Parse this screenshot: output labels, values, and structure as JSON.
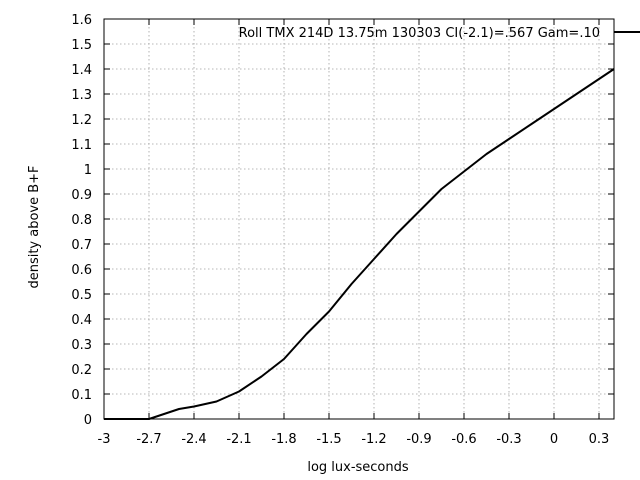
{
  "chart_data": {
    "type": "line",
    "title": "",
    "xlabel": "log lux-seconds",
    "ylabel": "density above B+F",
    "xlim": [
      -3.0,
      0.4
    ],
    "ylim": [
      0,
      1.6
    ],
    "grid": true,
    "legend_position": "top-right",
    "x_ticks": [
      -3,
      -2.7,
      -2.4,
      -2.1,
      -1.8,
      -1.5,
      -1.2,
      -0.9,
      -0.6,
      -0.3,
      0,
      0.3
    ],
    "x_tick_labels": [
      "-3",
      "-2.7",
      "-2.4",
      "-2.1",
      "-1.8",
      "-1.5",
      "-1.2",
      "-0.9",
      "-0.6",
      "-0.3",
      "0",
      "0.3"
    ],
    "y_ticks": [
      0,
      0.1,
      0.2,
      0.3,
      0.4,
      0.5,
      0.6,
      0.7,
      0.8,
      0.9,
      1,
      1.1,
      1.2,
      1.3,
      1.4,
      1.5,
      1.6
    ],
    "y_tick_labels": [
      "0",
      "0.1",
      "0.2",
      "0.3",
      "0.4",
      "0.5",
      "0.6",
      "0.7",
      "0.8",
      "0.9",
      "1",
      "1.1",
      "1.2",
      "1.3",
      "1.4",
      "1.5",
      "1.6"
    ],
    "series": [
      {
        "name": "Roll TMX 214D 13.75m 130303 CI(-2.1)=.567 Gam=.10",
        "color": "#000000",
        "x": [
          -3.0,
          -2.7,
          -2.6,
          -2.5,
          -2.4,
          -2.25,
          -2.1,
          -1.95,
          -1.8,
          -1.65,
          -1.5,
          -1.35,
          -1.2,
          -1.05,
          -0.9,
          -0.75,
          -0.6,
          -0.45,
          -0.3,
          -0.15,
          0.0,
          0.15,
          0.3,
          0.4
        ],
        "y": [
          0.0,
          0.0,
          0.02,
          0.04,
          0.05,
          0.07,
          0.11,
          0.17,
          0.24,
          0.34,
          0.43,
          0.54,
          0.64,
          0.74,
          0.83,
          0.92,
          0.99,
          1.06,
          1.12,
          1.18,
          1.24,
          1.3,
          1.36,
          1.4
        ]
      }
    ]
  }
}
